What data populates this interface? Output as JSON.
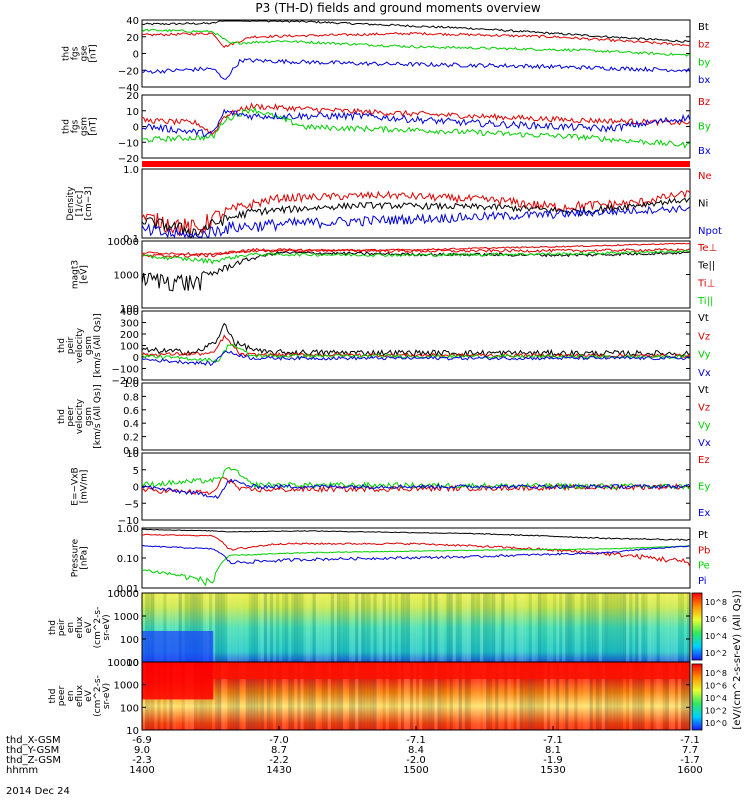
{
  "title": "P3 (TH-D) fields and ground moments overview",
  "date": "2014 Dec 24",
  "colors": {
    "black": "#000000",
    "red": "#e00000",
    "green": "#00d000",
    "blue": "#0000e0"
  },
  "chart_data": {
    "type": "line",
    "x_axis": {
      "unit": "hhmm",
      "range": [
        "1400",
        "1600"
      ],
      "rows": [
        {
          "label": "thd_X-GSM",
          "values": [
            "-6.9",
            "-7.0",
            "-7.1",
            "-7.1",
            "-7.1"
          ]
        },
        {
          "label": "thd_Y-GSM",
          "values": [
            "9.0",
            "8.7",
            "8.4",
            "8.1",
            "7.7"
          ]
        },
        {
          "label": "thd_Z-GSM",
          "values": [
            "-2.3",
            "-2.2",
            "-2.0",
            "-1.9",
            "-1.7"
          ]
        },
        {
          "label": "hhmm",
          "values": [
            "1400",
            "1430",
            "1500",
            "1530",
            "1600"
          ]
        }
      ]
    },
    "panels": [
      {
        "id": "fgs_gse",
        "ylabel": [
          "thd",
          "fgs",
          "gse",
          "[nT]"
        ],
        "scale": "linear",
        "ylim": [
          -40,
          40
        ],
        "yticks": [
          "40",
          "20",
          "0",
          "−20",
          "−40"
        ],
        "series": [
          {
            "name": "Bt",
            "color": "black"
          },
          {
            "name": "bz",
            "color": "red"
          },
          {
            "name": "by",
            "color": "green"
          },
          {
            "name": "bx",
            "color": "blue"
          }
        ]
      },
      {
        "id": "fgs_gsm",
        "ylabel": [
          "thd",
          "fgs",
          "gsm",
          "[nT]"
        ],
        "scale": "linear",
        "ylim": [
          -25,
          20
        ],
        "yticks": [
          "20",
          "10",
          "0",
          "−10",
          "−20"
        ],
        "series": [
          {
            "name": "Bz",
            "color": "red"
          },
          {
            "name": "By",
            "color": "green"
          },
          {
            "name": "Bx",
            "color": "blue"
          }
        ]
      },
      {
        "id": "flag_bar",
        "ylabel": [],
        "scale": "none",
        "yticks": [],
        "series": []
      },
      {
        "id": "density",
        "ylabel": [
          "Density",
          "[1/cc]",
          "[cm−3]"
        ],
        "scale": "log",
        "ylim": [
          0.1,
          1.0
        ],
        "yticks": [
          "1.0",
          "0.1"
        ],
        "series": [
          {
            "name": "Ne",
            "color": "red"
          },
          {
            "name": "Ni",
            "color": "black"
          },
          {
            "name": "Npot",
            "color": "blue"
          }
        ]
      },
      {
        "id": "temperature",
        "ylabel": [
          "magt3",
          "[eV]"
        ],
        "scale": "log",
        "ylim": [
          100,
          10000
        ],
        "yticks": [
          "10000",
          "1000",
          "100"
        ],
        "series": [
          {
            "name": "Te⊥",
            "color": "red"
          },
          {
            "name": "Te||",
            "color": "black"
          },
          {
            "name": "Ti⊥",
            "color": "red"
          },
          {
            "name": "Ti||",
            "color": "green"
          }
        ]
      },
      {
        "id": "peir_velocity",
        "ylabel": [
          "thd",
          "peir",
          "velocity",
          "gsm",
          "[km/s (All Qs)]"
        ],
        "scale": "linear",
        "ylim": [
          -200,
          400
        ],
        "yticks": [
          "400",
          "300",
          "200",
          "100",
          "0",
          "−100",
          "−200"
        ],
        "series": [
          {
            "name": "Vt",
            "color": "black"
          },
          {
            "name": "Vz",
            "color": "red"
          },
          {
            "name": "Vy",
            "color": "green"
          },
          {
            "name": "Vx",
            "color": "blue"
          }
        ]
      },
      {
        "id": "peer_velocity",
        "ylabel": [
          "thd",
          "peer",
          "velocity",
          "gsm",
          "[km/s (All Qs)]"
        ],
        "scale": "linear",
        "ylim": [
          0.0,
          1.0
        ],
        "yticks": [
          "1.0",
          "0.8",
          "0.6",
          "0.4",
          "0.2",
          "0.0"
        ],
        "series": [
          {
            "name": "Vt",
            "color": "black"
          },
          {
            "name": "Vz",
            "color": "red"
          },
          {
            "name": "Vy",
            "color": "green"
          },
          {
            "name": "Vx",
            "color": "blue"
          }
        ]
      },
      {
        "id": "efield",
        "ylabel": [
          "E=−VxB",
          "[mV/m]"
        ],
        "scale": "linear",
        "ylim": [
          -10,
          10
        ],
        "yticks": [
          "10",
          "5",
          "0",
          "−5",
          "−10"
        ],
        "series": [
          {
            "name": "Ez",
            "color": "red"
          },
          {
            "name": "Ey",
            "color": "green"
          },
          {
            "name": "Ex",
            "color": "blue"
          }
        ]
      },
      {
        "id": "pressure",
        "ylabel": [
          "Pressure",
          "[nPa]"
        ],
        "scale": "log",
        "ylim": [
          0.01,
          1.0
        ],
        "yticks": [
          "1.00",
          "0.10",
          "0.01"
        ],
        "series": [
          {
            "name": "Pt",
            "color": "black"
          },
          {
            "name": "Pb",
            "color": "red"
          },
          {
            "name": "Pe",
            "color": "green"
          },
          {
            "name": "Pi",
            "color": "blue"
          }
        ]
      },
      {
        "id": "peir_spectrogram",
        "ylabel": [
          "thd",
          "peir",
          "en",
          "eflux",
          "eV",
          "(cm^2-s-",
          "sr-eV)"
        ],
        "scale": "log",
        "ylim": [
          5,
          20000
        ],
        "yticks": [
          "10000",
          "1000",
          "100",
          "10"
        ],
        "series": []
      },
      {
        "id": "peer_spectrogram",
        "ylabel": [
          "thd",
          "peer",
          "en",
          "eflux",
          "eV",
          "(cm^2-s-",
          "sr-eV)"
        ],
        "scale": "log",
        "ylim": [
          5,
          20000
        ],
        "yticks": [
          "10000",
          "1000",
          "100",
          "10"
        ],
        "series": []
      }
    ],
    "colorbar": {
      "label": "[eV/(cm^2-s-sr-eV) (All Qs)]",
      "ticks_upper": [
        "10^8",
        "10^6",
        "10^4",
        "10^2"
      ],
      "ticks_lower": [
        "10^8",
        "10^6",
        "10^4",
        "10^2",
        "10^0"
      ]
    }
  }
}
